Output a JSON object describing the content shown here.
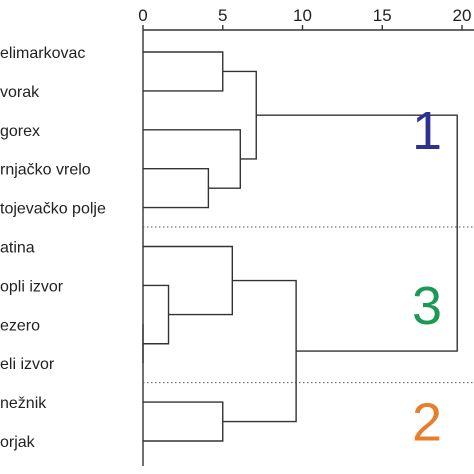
{
  "chart_data": {
    "type": "dendrogram",
    "orientation": "horizontal",
    "x_axis": {
      "position": "top",
      "range": [
        0,
        20
      ],
      "ticks": [
        0,
        5,
        10,
        15,
        20
      ],
      "tick_labels": [
        "0",
        "5",
        "10",
        "15",
        "20"
      ]
    },
    "leaves": [
      "elimarkovac",
      "vorak",
      "gorex",
      "rnjačko vrelo",
      "tojevačko polje",
      "atina",
      "opli izvor",
      "ezero",
      "eli izvor",
      "nežnik",
      "orjak"
    ],
    "merges": [
      {
        "left": 0,
        "right": 1,
        "height": 5.0
      },
      {
        "left": 3,
        "right": 4,
        "height": 4.1
      },
      {
        "left": 2,
        "right": 12,
        "height": 6.1
      },
      {
        "left": 11,
        "right": 13,
        "height": 7.1
      },
      {
        "left": 7,
        "right": 8,
        "height": 0.0
      },
      {
        "left": 6,
        "right": 15,
        "height": 1.6
      },
      {
        "left": 5,
        "right": 16,
        "height": 5.6
      },
      {
        "left": 9,
        "right": 10,
        "height": 5.0
      },
      {
        "left": 17,
        "right": 18,
        "height": 9.6
      },
      {
        "left": 14,
        "right": 19,
        "height": 19.7
      }
    ],
    "separators_after_leaf": [
      4,
      8
    ],
    "clusters": [
      {
        "label": "1",
        "color": "#2e3192",
        "leaves": [
          0,
          4
        ]
      },
      {
        "label": "3",
        "color": "#1a9a52",
        "leaves": [
          5,
          8
        ]
      },
      {
        "label": "2",
        "color": "#e87d2b",
        "leaves": [
          9,
          10
        ]
      }
    ]
  }
}
